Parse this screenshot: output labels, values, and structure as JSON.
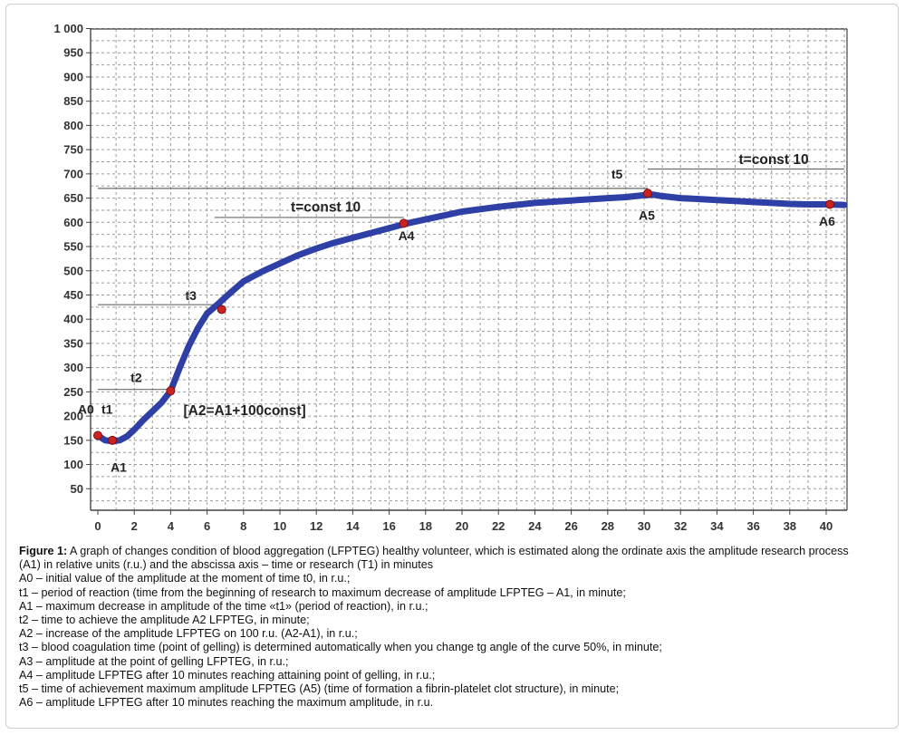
{
  "chart_data": {
    "type": "line",
    "xlim": [
      0,
      41
    ],
    "ylim": [
      0,
      1000
    ],
    "x_ticks": [
      0,
      2,
      4,
      6,
      8,
      10,
      12,
      14,
      16,
      18,
      20,
      22,
      24,
      26,
      28,
      30,
      32,
      34,
      36,
      38,
      40
    ],
    "y_ticks": [
      50,
      100,
      150,
      200,
      250,
      300,
      350,
      400,
      450,
      500,
      550,
      600,
      650,
      700,
      750,
      800,
      850,
      900,
      950,
      1000
    ],
    "y_tick_labels": [
      "50",
      "100",
      "150",
      "200",
      "250",
      "300",
      "350",
      "400",
      "450",
      "500",
      "550",
      "600",
      "650",
      "700",
      "750",
      "800",
      "850",
      "900",
      "950",
      "1 000"
    ],
    "grid": true,
    "line_color": "#2e3fa6",
    "marker_color": "#cc2222",
    "series": [
      {
        "x": [
          0,
          0.4,
          0.8,
          1.2,
          1.6,
          2.0,
          2.5,
          3.0,
          3.5,
          4.0,
          4.5,
          5.0,
          5.5,
          6.0,
          6.5,
          7.0,
          7.5,
          8.0,
          9.0,
          10.0,
          11.0,
          12.0,
          13.0,
          14.0,
          15.0,
          16.0,
          17.0,
          18.0,
          19.0,
          20.0,
          22.0,
          24.0,
          26.0,
          28.0,
          29.0,
          30.0,
          30.5,
          31.0,
          32.0,
          33.0,
          34.0,
          35.0,
          36.0,
          37.0,
          38.0,
          39.0,
          40.0,
          41.0
        ],
        "y": [
          160,
          150,
          148,
          150,
          158,
          172,
          192,
          210,
          228,
          252,
          300,
          345,
          382,
          412,
          428,
          445,
          462,
          478,
          498,
          515,
          532,
          546,
          558,
          568,
          578,
          588,
          598,
          606,
          614,
          622,
          632,
          640,
          645,
          650,
          652,
          656,
          657,
          654,
          650,
          648,
          646,
          644,
          642,
          640,
          638,
          637,
          637,
          636
        ]
      }
    ],
    "markers": [
      {
        "label": "A0",
        "x": 0,
        "y": 160
      },
      {
        "label": "A1",
        "x": 0.8,
        "y": 150
      },
      {
        "label": "A2",
        "x": 4,
        "y": 252
      },
      {
        "label": "A3",
        "x": 6.8,
        "y": 420
      },
      {
        "label": "A4",
        "x": 16.8,
        "y": 598
      },
      {
        "label": "A5",
        "x": 30.2,
        "y": 660
      },
      {
        "label": "A6",
        "x": 40.2,
        "y": 637
      }
    ],
    "reference_lines": [
      {
        "y": 255,
        "x_from": 0,
        "x_to": 4
      },
      {
        "y": 430,
        "x_from": 0,
        "x_to": 6.8
      },
      {
        "y": 610,
        "x_from": 6.4,
        "x_to": 16.8
      },
      {
        "y": 670,
        "x_from": 0,
        "x_to": 30.2
      },
      {
        "y": 710,
        "x_from": 30.2,
        "x_to": 41
      }
    ],
    "annotations": [
      {
        "id": "a0",
        "text": "A0",
        "x": -1.1,
        "y": 205,
        "size": "normal"
      },
      {
        "id": "t1",
        "text": "t1",
        "x": 0.2,
        "y": 205,
        "size": "normal"
      },
      {
        "id": "a1",
        "text": "A1",
        "x": 0.7,
        "y": 85,
        "size": "normal"
      },
      {
        "id": "t2",
        "text": "t2",
        "x": 1.8,
        "y": 270,
        "size": "normal"
      },
      {
        "id": "a2eq",
        "text": "[A2=A1+100const]",
        "x": 4.7,
        "y": 202,
        "size": "big"
      },
      {
        "id": "t3",
        "text": "t3",
        "x": 4.8,
        "y": 440,
        "size": "normal"
      },
      {
        "id": "tc1",
        "text": "t=const 10",
        "x": 10.6,
        "y": 622,
        "size": "big"
      },
      {
        "id": "a4",
        "text": "A4",
        "x": 16.5,
        "y": 563,
        "size": "normal"
      },
      {
        "id": "t5",
        "text": "t5",
        "x": 28.2,
        "y": 690,
        "size": "normal"
      },
      {
        "id": "a5",
        "text": "A5",
        "x": 29.7,
        "y": 605,
        "size": "normal"
      },
      {
        "id": "tc2",
        "text": "t=const 10",
        "x": 35.2,
        "y": 720,
        "size": "big"
      },
      {
        "id": "a6",
        "text": "A6",
        "x": 39.6,
        "y": 593,
        "size": "normal"
      }
    ]
  },
  "caption": {
    "figure_label": "Figure 1:",
    "figure_text": " A graph of changes condition of blood aggregation (LFPTEG) healthy volunteer, which is estimated along the ordinate axis the amplitude research process",
    "figure_text_2": "(A1) in relative units (r.u.) and the abscissa axis – time or research (T1) in minutes",
    "items": [
      "A0 – initial value of the amplitude at the moment of time t0, in r.u.;",
      "t1 – period of reaction (time from the beginning of research to maximum decrease of amplitude LFPTEG – A1, in minute;",
      "A1 – maximum decrease in amplitude of the time «t1» (period of reaction), in r.u.;",
      "t2 – time to achieve the amplitude A2 LFPTEG, in minute;",
      "A2 – increase of the amplitude LFPTEG on 100 r.u. (A2-A1), in r.u.;",
      "t3 – blood coagulation time (point of gelling) is determined automatically when you change tg angle of the curve 50%, in minute;",
      "A3 – amplitude at the point of gelling LFPTEG, in r.u.;",
      "A4 – amplitude LFPTEG after 10 minutes reaching attaining point of gelling, in r.u.;",
      "t5 – time of achievement maximum amplitude LFPTEG (A5) (time of formation a fibrin-platelet clot structure), in minute;",
      "A6 – amplitude LFPTEG after 10 minutes reaching the maximum amplitude, in r.u."
    ]
  }
}
